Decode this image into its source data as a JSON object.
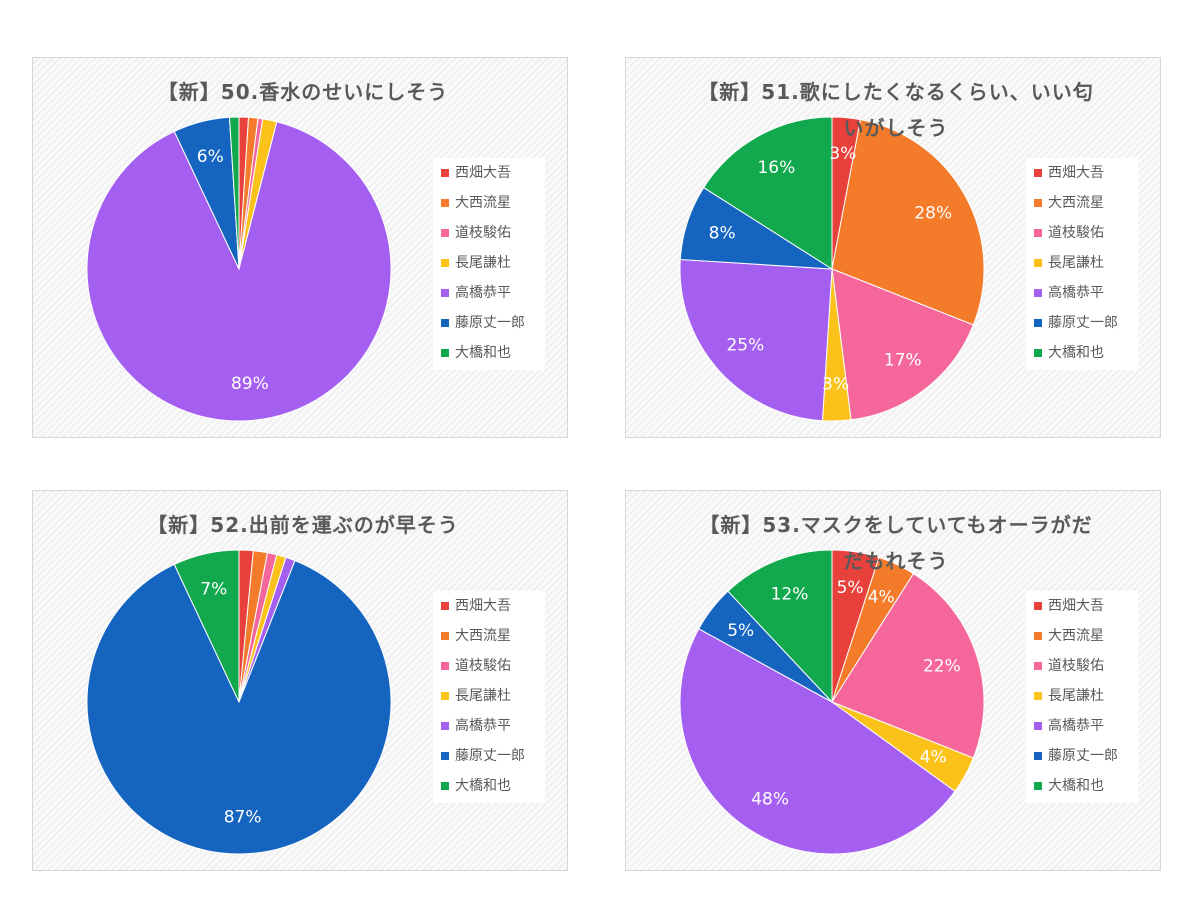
{
  "chart_data": [
    {
      "type": "pie",
      "title": "【新】50.香水のせいにしそう",
      "categories": [
        "西畑大吾",
        "大西流星",
        "道枝駿佑",
        "長尾謙杜",
        "高橋恭平",
        "藤原丈一郎",
        "大橋和也"
      ],
      "values": [
        1,
        1,
        0.5,
        1.5,
        89,
        6,
        1
      ],
      "value_labels": [
        null,
        null,
        null,
        null,
        "89%",
        "6%",
        null
      ],
      "colors": [
        "#e8413c",
        "#f47b2a",
        "#f5679a",
        "#fbc21a",
        "#a55ff0",
        "#1565c0",
        "#12a84d"
      ]
    },
    {
      "type": "pie",
      "title": "【新】51.歌にしたくなるくらい、いい匂いがしそう",
      "categories": [
        "西畑大吾",
        "大西流星",
        "道枝駿佑",
        "長尾謙杜",
        "高橋恭平",
        "藤原丈一郎",
        "大橋和也"
      ],
      "values": [
        3,
        28,
        17,
        3,
        25,
        8,
        16
      ],
      "value_labels": [
        "3%",
        "28%",
        "17%",
        "3%",
        "25%",
        "8%",
        "16%"
      ],
      "colors": [
        "#e8413c",
        "#f47b2a",
        "#f5679a",
        "#fbc21a",
        "#a55ff0",
        "#1565c0",
        "#12a84d"
      ]
    },
    {
      "type": "pie",
      "title": "【新】52.出前を運ぶのが早そう",
      "categories": [
        "西畑大吾",
        "大西流星",
        "道枝駿佑",
        "長尾謙杜",
        "高橋恭平",
        "藤原丈一郎",
        "大橋和也"
      ],
      "values": [
        1.5,
        1.5,
        1,
        1,
        1,
        87,
        7
      ],
      "value_labels": [
        null,
        null,
        null,
        null,
        null,
        "87%",
        "7%"
      ],
      "colors": [
        "#e8413c",
        "#f47b2a",
        "#f5679a",
        "#fbc21a",
        "#a55ff0",
        "#1565c0",
        "#12a84d"
      ]
    },
    {
      "type": "pie",
      "title": "【新】53.マスクをしていてもオーラがだだもれそう",
      "categories": [
        "西畑大吾",
        "大西流星",
        "道枝駿佑",
        "長尾謙杜",
        "高橋恭平",
        "藤原丈一郎",
        "大橋和也"
      ],
      "values": [
        5,
        4,
        22,
        4,
        48,
        5,
        12
      ],
      "value_labels": [
        "5%",
        "4%",
        "22%",
        "4%",
        "48%",
        "5%",
        "12%"
      ],
      "colors": [
        "#e8413c",
        "#f47b2a",
        "#f5679a",
        "#fbc21a",
        "#a55ff0",
        "#1565c0",
        "#12a84d"
      ]
    }
  ]
}
